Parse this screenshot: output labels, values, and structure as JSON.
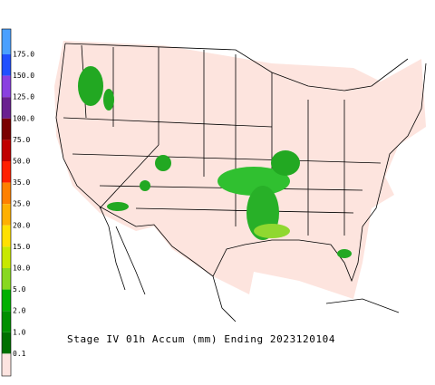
{
  "legend": {
    "labels": [
      "175.0",
      "150.0",
      "125.0",
      "100.0",
      "75.0",
      "50.0",
      "35.0",
      "25.0",
      "20.0",
      "15.0",
      "10.0",
      "5.0",
      "2.0",
      "1.0",
      "0.1"
    ],
    "colors": [
      "#4aa0ff",
      "#2050ff",
      "#8a40e0",
      "#6a2090",
      "#7a0000",
      "#c00000",
      "#ff2000",
      "#ff8000",
      "#ffb000",
      "#ffe000",
      "#c8e800",
      "#88d820",
      "#00b000",
      "#009000",
      "#007000",
      "#fde4e0"
    ]
  },
  "caption": "Stage IV 01h Accum (mm) Ending 2023120104"
}
